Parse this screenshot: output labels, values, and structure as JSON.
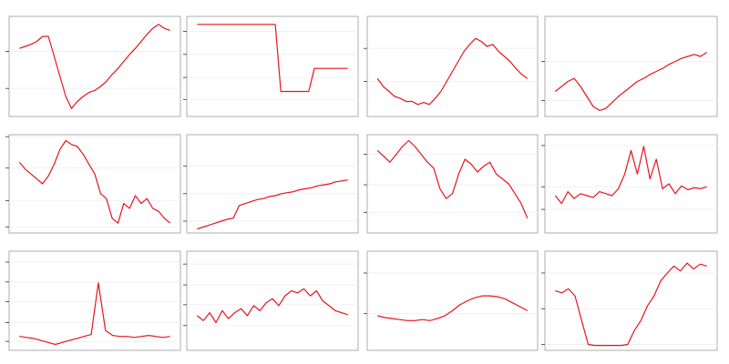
{
  "chart_data": [
    {
      "type": "line",
      "color": "#e8141c",
      "grid": true,
      "ylim": [
        0,
        100
      ],
      "yticks": [
        28,
        65
      ],
      "values": [
        68,
        70,
        72,
        75,
        80,
        80,
        60,
        40,
        20,
        8,
        15,
        20,
        24,
        26,
        30,
        35,
        42,
        48,
        55,
        62,
        68,
        75,
        82,
        88,
        92,
        88,
        86
      ]
    },
    {
      "type": "line",
      "color": "#e8141c",
      "grid": true,
      "ylim": [
        0,
        100
      ],
      "yticks": [
        17,
        39,
        62,
        85
      ],
      "values": [
        92,
        92,
        92,
        92,
        92,
        92,
        92,
        92,
        92,
        92,
        92,
        92,
        92,
        92,
        92,
        25,
        25,
        25,
        25,
        25,
        25,
        48,
        48,
        48,
        48,
        48,
        48,
        48
      ]
    },
    {
      "type": "line",
      "color": "#e8141c",
      "grid": true,
      "ylim": [
        0,
        100
      ],
      "yticks": [
        35,
        68
      ],
      "values": [
        38,
        30,
        25,
        20,
        18,
        15,
        15,
        12,
        14,
        12,
        18,
        25,
        35,
        45,
        55,
        65,
        72,
        78,
        75,
        70,
        72,
        65,
        60,
        55,
        48,
        42,
        38
      ]
    },
    {
      "type": "line",
      "color": "#e8141c",
      "grid": true,
      "ylim": [
        0,
        100
      ],
      "yticks": [
        16,
        55
      ],
      "values": [
        25,
        30,
        35,
        38,
        30,
        20,
        10,
        6,
        8,
        14,
        20,
        25,
        30,
        35,
        38,
        42,
        45,
        48,
        52,
        55,
        58,
        60,
        62,
        60,
        64
      ]
    },
    {
      "type": "line",
      "color": "#e8141c",
      "grid": true,
      "ylim": [
        0,
        100
      ],
      "yticks": [
        6,
        33,
        66,
        98
      ],
      "values": [
        72,
        65,
        60,
        55,
        50,
        58,
        70,
        85,
        94,
        90,
        88,
        80,
        70,
        60,
        40,
        35,
        15,
        10,
        30,
        25,
        38,
        30,
        35,
        25,
        22,
        15,
        10
      ]
    },
    {
      "type": "line",
      "color": "#e8141c",
      "grid": true,
      "ylim": [
        0,
        100
      ],
      "yticks": [
        12,
        40,
        68
      ],
      "values": [
        4,
        6,
        8,
        10,
        12,
        14,
        15,
        28,
        30,
        32,
        34,
        35,
        37,
        38,
        40,
        41,
        42,
        44,
        45,
        46,
        48,
        49,
        50,
        52,
        53,
        54
      ]
    },
    {
      "type": "line",
      "color": "#e8141c",
      "grid": true,
      "ylim": [
        0,
        100
      ],
      "yticks": [
        21,
        49,
        80
      ],
      "values": [
        84,
        78,
        72,
        80,
        88,
        94,
        88,
        80,
        72,
        66,
        45,
        35,
        40,
        60,
        75,
        70,
        62,
        68,
        72,
        60,
        55,
        50,
        40,
        30,
        15
      ]
    },
    {
      "type": "line",
      "color": "#e8141c",
      "grid": true,
      "ylim": [
        0,
        100
      ],
      "yticks": [
        24,
        47,
        89
      ],
      "values": [
        38,
        30,
        42,
        35,
        40,
        38,
        36,
        42,
        40,
        38,
        45,
        60,
        84,
        60,
        88,
        55,
        75,
        45,
        50,
        40,
        48,
        44,
        46,
        45,
        47
      ]
    },
    {
      "type": "line",
      "color": "#e8141c",
      "grid": true,
      "ylim": [
        0,
        100
      ],
      "yticks": [
        9,
        28,
        49,
        69,
        89
      ],
      "values": [
        14,
        13,
        12,
        10,
        8,
        6,
        8,
        10,
        12,
        14,
        16,
        68,
        20,
        15,
        14,
        14,
        13,
        14,
        15,
        14,
        13,
        14
      ]
    },
    {
      "type": "line",
      "color": "#e8141c",
      "grid": true,
      "ylim": [
        0,
        100
      ],
      "yticks": [
        25,
        46,
        66,
        87
      ],
      "values": [
        35,
        30,
        38,
        28,
        40,
        32,
        38,
        42,
        35,
        45,
        40,
        48,
        52,
        45,
        55,
        60,
        58,
        62,
        55,
        60,
        50,
        45,
        40,
        38,
        36
      ]
    },
    {
      "type": "line",
      "color": "#e8141c",
      "grid": true,
      "ylim": [
        0,
        100
      ],
      "yticks": [
        37,
        78
      ],
      "values": [
        35,
        33,
        32,
        31,
        30,
        30,
        31,
        30,
        32,
        35,
        40,
        46,
        50,
        53,
        55,
        55,
        54,
        52,
        48,
        44,
        40
      ]
    },
    {
      "type": "line",
      "color": "#e8141c",
      "grid": true,
      "ylim": [
        0,
        100
      ],
      "yticks": [
        6,
        42,
        78
      ],
      "values": [
        60,
        58,
        62,
        55,
        30,
        6,
        5,
        5,
        5,
        5,
        5,
        6,
        20,
        30,
        45,
        55,
        70,
        78,
        85,
        80,
        88,
        82,
        87,
        85
      ]
    }
  ]
}
